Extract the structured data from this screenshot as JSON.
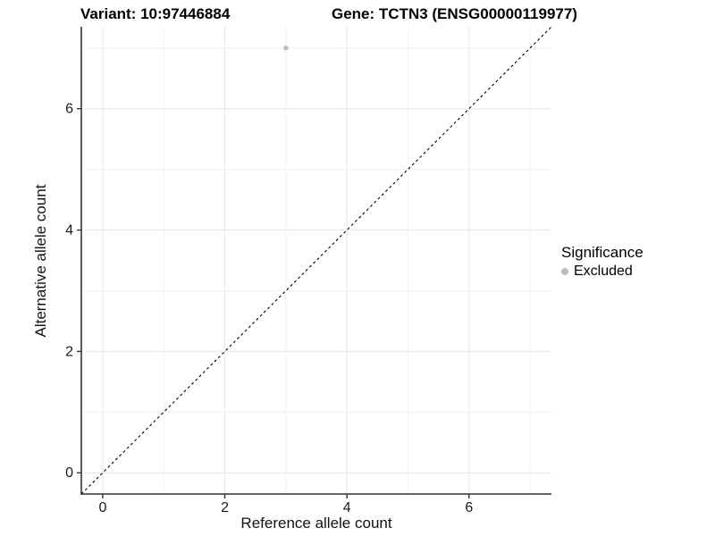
{
  "chart_data": {
    "type": "scatter",
    "titles": {
      "left": "Variant: 10:97446884",
      "right": "Gene: TCTN3 (ENSG00000119977)"
    },
    "xlabel": "Reference allele count",
    "ylabel": "Alternative allele count",
    "xlim": [
      -0.35,
      7.35
    ],
    "ylim": [
      -0.35,
      7.35
    ],
    "xticks": [
      0,
      2,
      4,
      6
    ],
    "yticks": [
      0,
      2,
      4,
      6
    ],
    "x_minor_ticks": [
      1,
      3,
      5,
      7
    ],
    "y_minor_ticks": [
      1,
      3,
      5,
      7
    ],
    "grid": {
      "major_color": "#e7e7e7",
      "minor_color": "#f2f2f2",
      "background": "#ffffff"
    },
    "axis_line_color": "#333333",
    "tick_label_color": "#1a1a1a",
    "identity_line": {
      "style": "dashed",
      "color": "#000000",
      "from": -0.35,
      "to": 7.35
    },
    "series": [
      {
        "name": "Excluded",
        "color": "#bdbdbd",
        "points": [
          {
            "x": 3,
            "y": 7
          }
        ]
      }
    ],
    "legend": {
      "title": "Significance",
      "position": "right",
      "entries": [
        {
          "label": "Excluded",
          "color": "#bdbdbd"
        }
      ]
    }
  }
}
